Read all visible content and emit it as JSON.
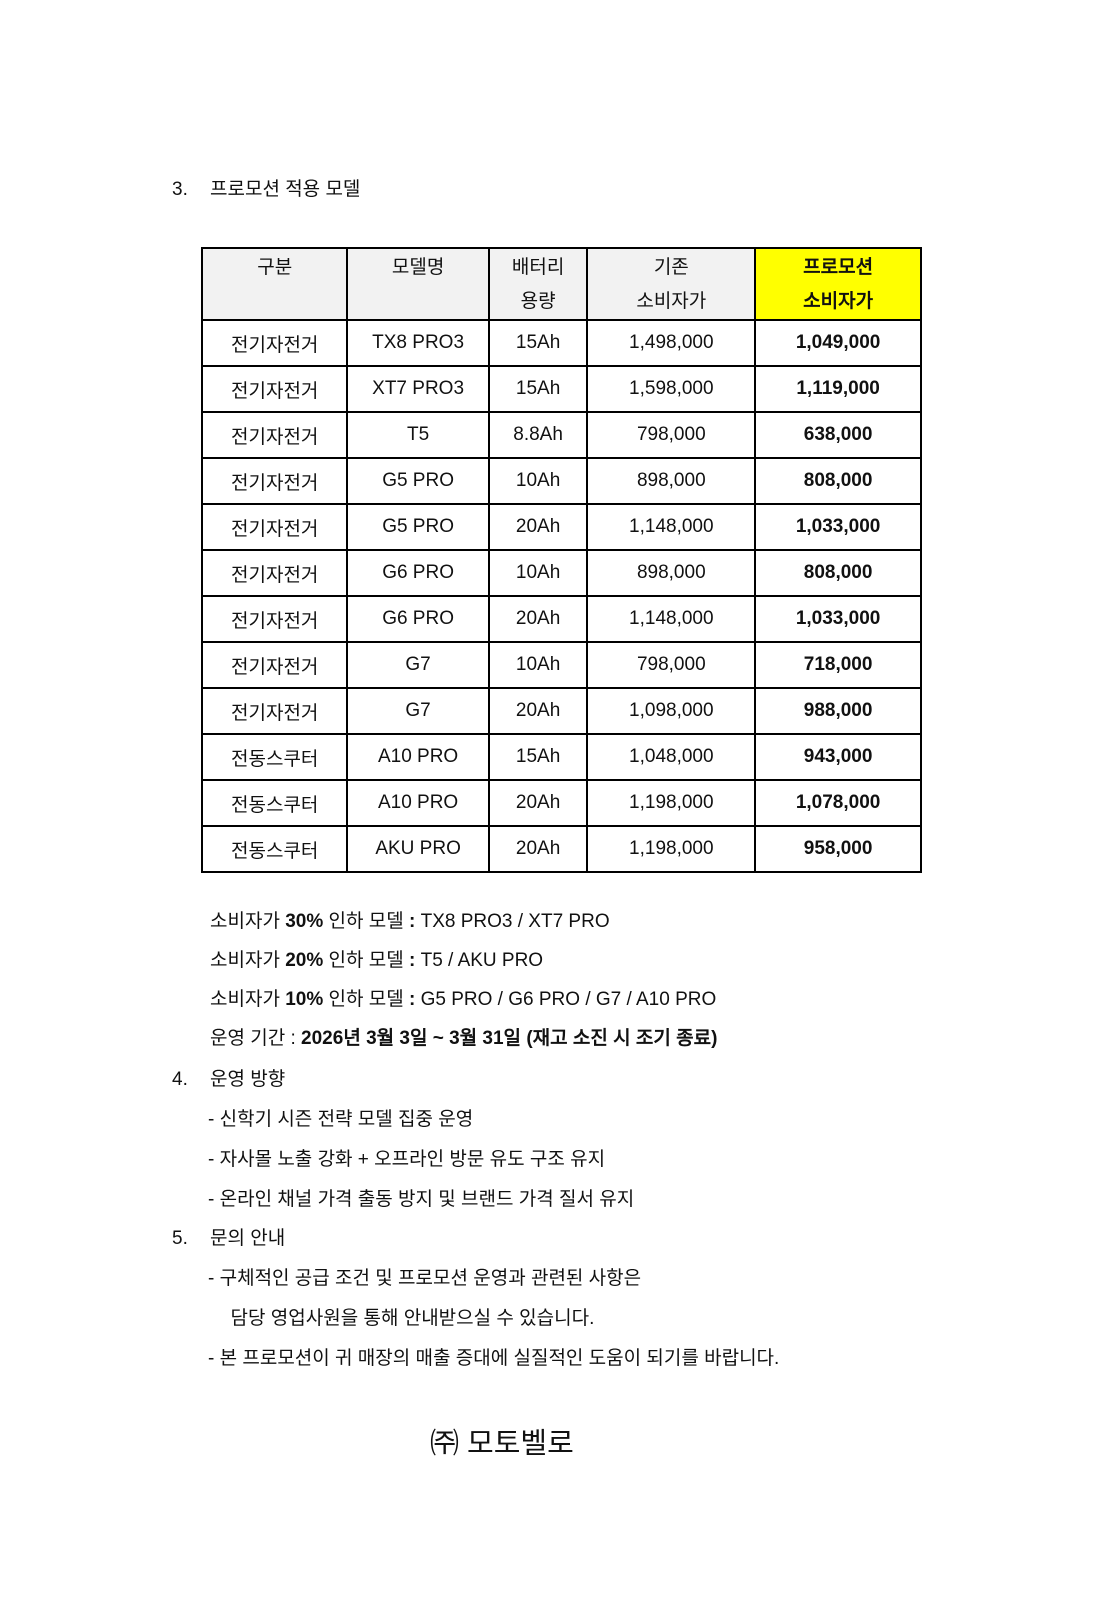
{
  "section3": {
    "num": "3.",
    "title": "프로모션 적용 모델"
  },
  "table": {
    "headers": [
      [
        "구분",
        ""
      ],
      [
        "모델명",
        ""
      ],
      [
        "배터리",
        "용량"
      ],
      [
        "기존",
        "소비자가"
      ],
      [
        "프로모션",
        "소비자가"
      ]
    ],
    "rows": [
      [
        "전기자전거",
        "TX8 PRO3",
        "15Ah",
        "1,498,000",
        "1,049,000"
      ],
      [
        "전기자전거",
        "XT7 PRO3",
        "15Ah",
        "1,598,000",
        "1,119,000"
      ],
      [
        "전기자전거",
        "T5",
        "8.8Ah",
        "798,000",
        "638,000"
      ],
      [
        "전기자전거",
        "G5 PRO",
        "10Ah",
        "898,000",
        "808,000"
      ],
      [
        "전기자전거",
        "G5 PRO",
        "20Ah",
        "1,148,000",
        "1,033,000"
      ],
      [
        "전기자전거",
        "G6 PRO",
        "10Ah",
        "898,000",
        "808,000"
      ],
      [
        "전기자전거",
        "G6 PRO",
        "20Ah",
        "1,148,000",
        "1,033,000"
      ],
      [
        "전기자전거",
        "G7",
        "10Ah",
        "798,000",
        "718,000"
      ],
      [
        "전기자전거",
        "G7",
        "20Ah",
        "1,098,000",
        "988,000"
      ],
      [
        "전동스쿠터",
        "A10 PRO",
        "15Ah",
        "1,048,000",
        "943,000"
      ],
      [
        "전동스쿠터",
        "A10 PRO",
        "20Ah",
        "1,198,000",
        "1,078,000"
      ],
      [
        "전동스쿠터",
        "AKU PRO",
        "20Ah",
        "1,198,000",
        "958,000"
      ]
    ],
    "highlight_color": "#ffff00"
  },
  "notes": [
    {
      "a": "소비자가 ",
      "b": "30%",
      "c": " 인하 모델 ",
      "d": ":",
      "e": " TX8 PRO3 / XT7 PRO"
    },
    {
      "a": "소비자가 ",
      "b": "20%",
      "c": " 인하 모델 ",
      "d": ":",
      "e": " T5 / AKU PRO"
    },
    {
      "a": "소비자가 ",
      "b": "10%",
      "c": " 인하 모델 ",
      "d": ":",
      "e": " G5 PRO / G6 PRO / G7 / A10 PRO"
    }
  ],
  "period": {
    "label": "운영 기간 : ",
    "value": "2026년 3월 3일 ~ 3월 31일 (재고 소진 시 조기 종료)"
  },
  "section4": {
    "num": "4.",
    "title": "운영 방향",
    "items": [
      "- 신학기 시즌 전략 모델 집중 운영",
      "- 자사몰 노출 강화 + 오프라인 방문 유도 구조 유지",
      "- 온라인 채널 가격 출동 방지 및 브랜드 가격 질서 유지"
    ]
  },
  "section5": {
    "num": "5.",
    "title": "문의 안내",
    "items": [
      "- 구체적인 공급 조건 및 프로모션 운영과 관련된 사항은",
      "  담당 영업사원을 통해 안내받으실 수 있습니다.",
      "- 본 프로모션이 귀 매장의 매출 증대에 실질적인 도움이 되기를 바랍니다."
    ]
  },
  "company": "㈜ 모토벨로"
}
